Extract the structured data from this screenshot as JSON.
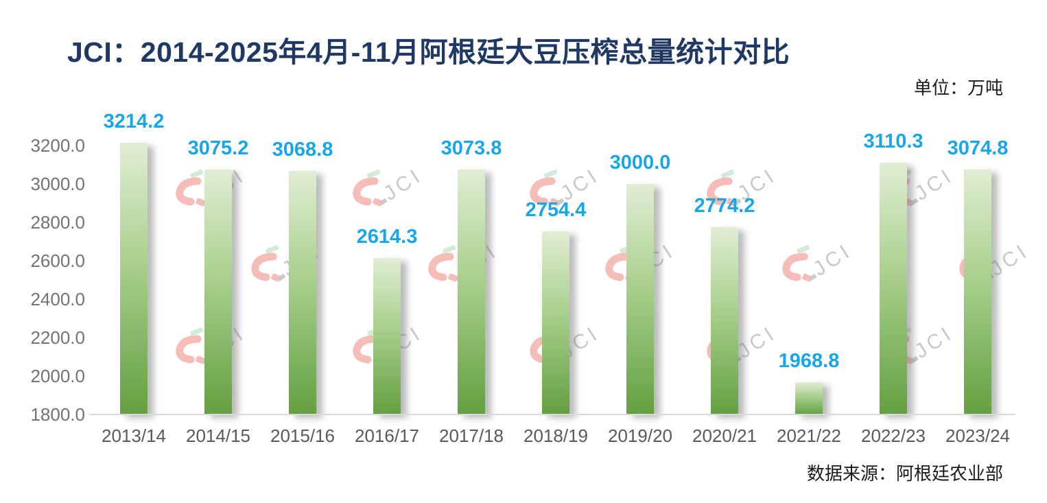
{
  "header": {
    "title": "JCI：2014-2025年4月-11月阿根廷大豆压榨总量统计对比",
    "unit_label": "单位：万吨"
  },
  "footer": {
    "source": "数据来源：阿根廷农业部"
  },
  "watermark": {
    "text": "JCI"
  },
  "colors": {
    "title_navy": "#1f3864",
    "value_label_blue": "#18a6e8",
    "bar_gradient_top": "#e0eed4",
    "bar_gradient_bottom": "#63a041",
    "axis_line_gray": "#d9d9d9",
    "ytick_gray": "#737373",
    "xtick_gray": "#595959",
    "text_dark": "#1a1a1a",
    "watermark_pink": "#f6bcb8",
    "watermark_gray": "#c9c9c9",
    "watermark_green": "#d2ebd9"
  },
  "chart_data": {
    "type": "bar",
    "title": "JCI：2014-2025年4月-11月阿根廷大豆压榨总量统计对比",
    "categories": [
      "2013/14",
      "2014/15",
      "2015/16",
      "2016/17",
      "2017/18",
      "2018/19",
      "2019/20",
      "2020/21",
      "2021/22",
      "2022/23",
      "2023/24"
    ],
    "values": [
      3214.2,
      3075.2,
      3068.8,
      2614.3,
      3073.8,
      2754.4,
      3000.0,
      2774.2,
      1968.8,
      3110.3,
      3074.8
    ],
    "value_labels": [
      "3214.2",
      "3075.2",
      "3068.8",
      "2614.3",
      "3073.8",
      "2754.4",
      "3000.0",
      "2774.2",
      "1968.8",
      "3110.3",
      "3074.8"
    ],
    "xlabel": "",
    "ylabel": "万吨",
    "ylim": [
      1800,
      3300
    ],
    "y_ticks": [
      1800,
      2000,
      2200,
      2400,
      2600,
      2800,
      3000,
      3200
    ],
    "y_tick_decimals": 1,
    "grid": false,
    "legend": "none",
    "bar_style": "vertical gradient green, drop shadow right",
    "data_label_position": "above bars"
  }
}
